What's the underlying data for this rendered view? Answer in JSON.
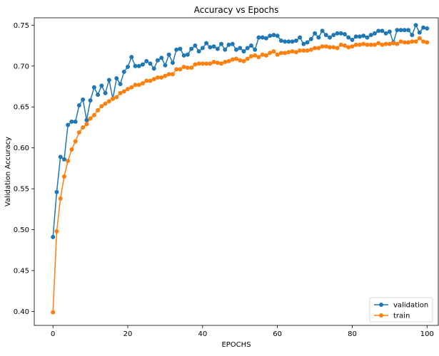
{
  "chart_data": {
    "type": "line",
    "title": "Accuracy vs Epochs",
    "xlabel": "EPOCHS",
    "ylabel": "Validation Accuracy",
    "xlim": [
      -5,
      103
    ],
    "ylim": [
      0.383,
      0.759
    ],
    "xticks": [
      0,
      20,
      40,
      60,
      80,
      100
    ],
    "yticks": [
      0.4,
      0.45,
      0.5,
      0.55,
      0.6,
      0.65,
      0.7,
      0.75
    ],
    "ytick_labels": [
      "0.40",
      "0.45",
      "0.50",
      "0.55",
      "0.60",
      "0.65",
      "0.70",
      "0.75"
    ],
    "legend_position": "lower-right",
    "grid": false,
    "series": [
      {
        "name": "validation",
        "color": "#1f77b4",
        "marker": "circle",
        "x": [
          0,
          1,
          2,
          3,
          4,
          5,
          6,
          7,
          8,
          9,
          10,
          11,
          12,
          13,
          14,
          15,
          16,
          17,
          18,
          19,
          20,
          21,
          22,
          23,
          24,
          25,
          26,
          27,
          28,
          29,
          30,
          31,
          32,
          33,
          34,
          35,
          36,
          37,
          38,
          39,
          40,
          41,
          42,
          43,
          44,
          45,
          46,
          47,
          48,
          49,
          50,
          51,
          52,
          53,
          54,
          55,
          56,
          57,
          58,
          59,
          60,
          61,
          62,
          63,
          64,
          65,
          66,
          67,
          68,
          69,
          70,
          71,
          72,
          73,
          74,
          75,
          76,
          77,
          78,
          79,
          80,
          81,
          82,
          83,
          84,
          85,
          86,
          87,
          88,
          89,
          90,
          91,
          92,
          93,
          94,
          95,
          96,
          97,
          98,
          99,
          100
        ],
        "values": [
          0.491,
          0.546,
          0.589,
          0.586,
          0.628,
          0.632,
          0.632,
          0.652,
          0.659,
          0.634,
          0.658,
          0.674,
          0.665,
          0.676,
          0.667,
          0.683,
          0.66,
          0.685,
          0.678,
          0.693,
          0.699,
          0.711,
          0.7,
          0.7,
          0.702,
          0.706,
          0.703,
          0.697,
          0.707,
          0.71,
          0.701,
          0.714,
          0.704,
          0.72,
          0.721,
          0.713,
          0.714,
          0.721,
          0.725,
          0.718,
          0.722,
          0.728,
          0.723,
          0.724,
          0.721,
          0.727,
          0.72,
          0.726,
          0.727,
          0.72,
          0.722,
          0.718,
          0.722,
          0.725,
          0.72,
          0.735,
          0.735,
          0.734,
          0.737,
          0.738,
          0.737,
          0.731,
          0.73,
          0.73,
          0.73,
          0.731,
          0.735,
          0.727,
          0.729,
          0.733,
          0.74,
          0.735,
          0.743,
          0.738,
          0.735,
          0.738,
          0.74,
          0.74,
          0.739,
          0.735,
          0.732,
          0.736,
          0.736,
          0.737,
          0.735,
          0.738,
          0.74,
          0.743,
          0.743,
          0.74,
          0.742,
          0.729,
          0.744,
          0.744,
          0.744,
          0.744,
          0.738,
          0.75,
          0.741,
          0.747,
          0.746
        ]
      },
      {
        "name": "train",
        "color": "#ff7f0e",
        "marker": "circle",
        "x": [
          0,
          1,
          2,
          3,
          4,
          5,
          6,
          7,
          8,
          9,
          10,
          11,
          12,
          13,
          14,
          15,
          16,
          17,
          18,
          19,
          20,
          21,
          22,
          23,
          24,
          25,
          26,
          27,
          28,
          29,
          30,
          31,
          32,
          33,
          34,
          35,
          36,
          37,
          38,
          39,
          40,
          41,
          42,
          43,
          44,
          45,
          46,
          47,
          48,
          49,
          50,
          51,
          52,
          53,
          54,
          55,
          56,
          57,
          58,
          59,
          60,
          61,
          62,
          63,
          64,
          65,
          66,
          67,
          68,
          69,
          70,
          71,
          72,
          73,
          74,
          75,
          76,
          77,
          78,
          79,
          80,
          81,
          82,
          83,
          84,
          85,
          86,
          87,
          88,
          89,
          90,
          91,
          92,
          93,
          94,
          95,
          96,
          97,
          98,
          99,
          100
        ],
        "values": [
          0.399,
          0.498,
          0.538,
          0.565,
          0.584,
          0.598,
          0.608,
          0.619,
          0.625,
          0.629,
          0.636,
          0.64,
          0.646,
          0.651,
          0.654,
          0.657,
          0.66,
          0.662,
          0.667,
          0.669,
          0.672,
          0.674,
          0.677,
          0.677,
          0.679,
          0.682,
          0.682,
          0.684,
          0.686,
          0.686,
          0.688,
          0.69,
          0.69,
          0.696,
          0.696,
          0.699,
          0.698,
          0.698,
          0.702,
          0.703,
          0.703,
          0.703,
          0.703,
          0.705,
          0.704,
          0.703,
          0.705,
          0.706,
          0.708,
          0.709,
          0.707,
          0.706,
          0.709,
          0.712,
          0.713,
          0.711,
          0.714,
          0.713,
          0.716,
          0.718,
          0.714,
          0.716,
          0.716,
          0.717,
          0.718,
          0.717,
          0.719,
          0.719,
          0.719,
          0.72,
          0.722,
          0.722,
          0.724,
          0.724,
          0.723,
          0.723,
          0.722,
          0.726,
          0.725,
          0.723,
          0.724,
          0.726,
          0.726,
          0.727,
          0.726,
          0.726,
          0.726,
          0.728,
          0.726,
          0.727,
          0.727,
          0.728,
          0.727,
          0.73,
          0.729,
          0.729,
          0.73,
          0.73,
          0.734,
          0.73,
          0.729
        ]
      }
    ]
  }
}
